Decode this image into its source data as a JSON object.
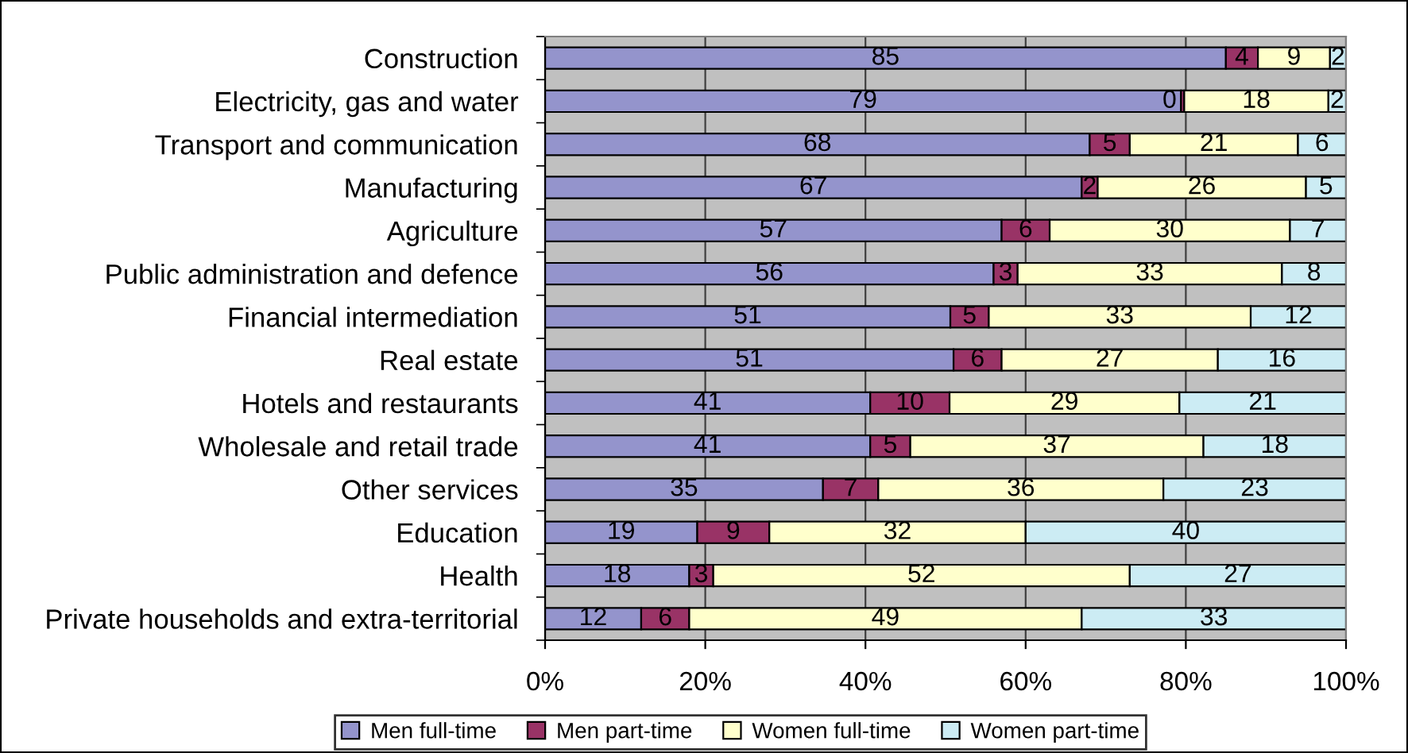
{
  "chart_data": {
    "type": "bar",
    "orientation": "horizontal",
    "stacked": true,
    "categories": [
      "Construction",
      "Electricity, gas and water",
      "Transport and communication",
      "Manufacturing",
      "Agriculture",
      "Public administration and defence",
      "Financial intermediation",
      "Real estate",
      "Hotels and restaurants",
      "Wholesale and retail trade",
      "Other services",
      "Education",
      "Health",
      "Private households and extra-territorial"
    ],
    "series": [
      {
        "name": "Men full-time",
        "color": "#9494cc",
        "values": [
          85,
          79.4,
          68,
          67,
          57,
          56,
          50.6,
          51,
          40.6,
          40.6,
          34.7,
          19,
          18,
          12
        ],
        "value_labels": [
          "85",
          "79",
          "68",
          "67",
          "57",
          "56",
          "51",
          "51",
          "41",
          "41",
          "35",
          "19",
          "18",
          "12"
        ]
      },
      {
        "name": "Men part-time",
        "color": "#993366",
        "values": [
          4,
          0.4,
          5,
          2,
          6,
          3,
          4.8,
          6,
          9.9,
          5.0,
          6.9,
          9,
          3,
          6
        ],
        "value_labels": [
          "4",
          "0",
          "5",
          "2",
          "6",
          "3",
          "5",
          "6",
          "10",
          "5",
          "7",
          "9",
          "3",
          "6"
        ]
      },
      {
        "name": "Women full-time",
        "color": "#ffffcc",
        "values": [
          9,
          18.0,
          21,
          26,
          30,
          33,
          32.7,
          27,
          28.7,
          36.6,
          35.6,
          32,
          52,
          49
        ],
        "value_labels": [
          "9",
          "18",
          "21",
          "26",
          "30",
          "33",
          "33",
          "27",
          "29",
          "37",
          "36",
          "32",
          "52",
          "49"
        ]
      },
      {
        "name": "Women part-time",
        "color": "#ccecf4",
        "values": [
          2,
          2.2,
          6,
          5,
          7,
          8,
          11.9,
          16,
          20.8,
          17.8,
          22.8,
          40,
          27,
          33
        ],
        "value_labels": [
          "2",
          "2",
          "6",
          "5",
          "7",
          "8",
          "12",
          "16",
          "21",
          "18",
          "23",
          "40",
          "27",
          "33"
        ]
      }
    ],
    "xlim": [
      0,
      100
    ],
    "xticks": [
      {
        "value": 0,
        "label": "0%"
      },
      {
        "value": 20,
        "label": "20%"
      },
      {
        "value": 40,
        "label": "40%"
      },
      {
        "value": 60,
        "label": "60%"
      },
      {
        "value": 80,
        "label": "80%"
      },
      {
        "value": 100,
        "label": "100%"
      }
    ],
    "grid": "x",
    "legend": "bottom"
  }
}
